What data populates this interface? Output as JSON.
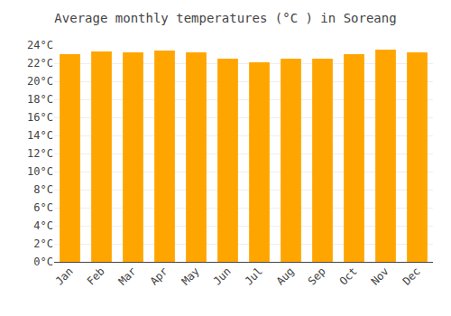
{
  "chart_data": {
    "type": "bar",
    "title": "Average monthly temperatures (°C ) in Soreang",
    "categories": [
      "Jan",
      "Feb",
      "Mar",
      "Apr",
      "May",
      "Jun",
      "Jul",
      "Aug",
      "Sep",
      "Oct",
      "Nov",
      "Dec"
    ],
    "values": [
      23.0,
      23.3,
      23.2,
      23.4,
      23.2,
      22.5,
      22.1,
      22.5,
      22.5,
      23.0,
      23.5,
      23.2
    ],
    "color": "#FFA500",
    "ylim": [
      0,
      24
    ],
    "yticks": [
      {
        "value": 0,
        "label": "0°C"
      },
      {
        "value": 2,
        "label": "2°C"
      },
      {
        "value": 4,
        "label": "4°C"
      },
      {
        "value": 6,
        "label": "6°C"
      },
      {
        "value": 8,
        "label": "8°C"
      },
      {
        "value": 10,
        "label": "10°C"
      },
      {
        "value": 12,
        "label": "12°C"
      },
      {
        "value": 14,
        "label": "14°C"
      },
      {
        "value": 16,
        "label": "16°C"
      },
      {
        "value": 18,
        "label": "18°C"
      },
      {
        "value": 20,
        "label": "20°C"
      },
      {
        "value": 22,
        "label": "22°C"
      },
      {
        "value": 24,
        "label": "24°C"
      }
    ],
    "grid": true
  }
}
